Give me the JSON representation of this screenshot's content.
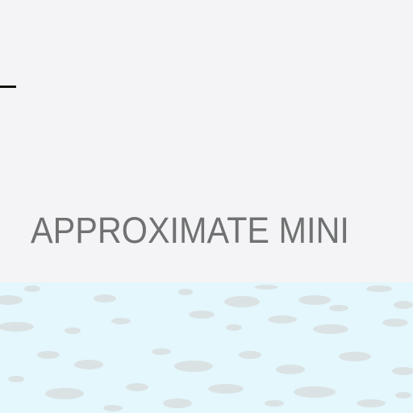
{
  "caption": {
    "text": "APPROXIMATE MINI"
  },
  "colors": {
    "page_background": "#f4f4f6",
    "caption_text": "#707272",
    "lower_panel": "#e3f7fc",
    "texture_speckle": "#d9dcdc",
    "mark": "#111111"
  }
}
